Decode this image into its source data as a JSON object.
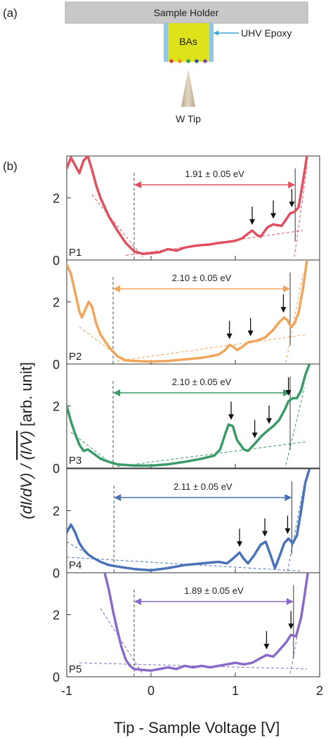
{
  "panel_a": {
    "label": "(a)",
    "sample_holder": "Sample Holder",
    "crystal": "BAs",
    "epoxy": "UHV Epoxy",
    "tip": "W Tip",
    "dot_colors": [
      "#d94545",
      "#f0901a",
      "#3fa05a",
      "#2f55a8",
      "#7b4fa8"
    ]
  },
  "panel_b": {
    "label": "(b)",
    "ylabel_left": "(dI/dV) / ",
    "ylabel_frac": "(I/V)",
    "ylabel_right": " [arb. unit]",
    "xlabel": "Tip - Sample Voltage [V]"
  },
  "chart_data": {
    "type": "line",
    "xlim": [
      -1,
      2
    ],
    "ylim": [
      0,
      3.35
    ],
    "xticks": [
      "-1",
      "0",
      "1",
      "2"
    ],
    "yticks": [
      "0",
      "2"
    ],
    "grid": false,
    "series": [
      {
        "name": "P1",
        "color": "#e05060",
        "gap_text": "1.91 ± 0.05 eV",
        "gap": [
          -0.2,
          1.71
        ],
        "arrows": [
          1.2,
          1.45,
          1.67
        ],
        "points": [
          [
            -1.0,
            2.95
          ],
          [
            -0.95,
            3.3
          ],
          [
            -0.9,
            3.05
          ],
          [
            -0.85,
            2.8
          ],
          [
            -0.8,
            3.2
          ],
          [
            -0.75,
            3.35
          ],
          [
            -0.7,
            2.9
          ],
          [
            -0.65,
            2.4
          ],
          [
            -0.6,
            2.0
          ],
          [
            -0.5,
            1.4
          ],
          [
            -0.4,
            0.95
          ],
          [
            -0.3,
            0.55
          ],
          [
            -0.2,
            0.28
          ],
          [
            -0.1,
            0.2
          ],
          [
            0.0,
            0.22
          ],
          [
            0.1,
            0.25
          ],
          [
            0.2,
            0.35
          ],
          [
            0.3,
            0.3
          ],
          [
            0.4,
            0.4
          ],
          [
            0.5,
            0.45
          ],
          [
            0.6,
            0.48
          ],
          [
            0.7,
            0.5
          ],
          [
            0.8,
            0.55
          ],
          [
            0.9,
            0.58
          ],
          [
            1.0,
            0.62
          ],
          [
            1.08,
            0.7
          ],
          [
            1.15,
            0.85
          ],
          [
            1.2,
            0.95
          ],
          [
            1.25,
            0.82
          ],
          [
            1.3,
            0.75
          ],
          [
            1.38,
            1.05
          ],
          [
            1.45,
            1.15
          ],
          [
            1.5,
            1.12
          ],
          [
            1.55,
            1.1
          ],
          [
            1.6,
            1.3
          ],
          [
            1.65,
            1.5
          ],
          [
            1.7,
            1.55
          ],
          [
            1.75,
            1.7
          ],
          [
            1.8,
            2.5
          ],
          [
            1.85,
            3.35
          ]
        ],
        "fit_low": [
          [
            -0.7,
            2.1
          ],
          [
            -0.1,
            0.1
          ]
        ],
        "fit_base": [
          [
            -0.3,
            0.15
          ],
          [
            1.8,
            0.95
          ]
        ],
        "fit_high": [
          [
            1.7,
            0.1
          ],
          [
            1.85,
            3.0
          ]
        ]
      },
      {
        "name": "P2",
        "color": "#f0a55a",
        "gap_text": "2.10 ± 0.05 eV",
        "gap": [
          -0.45,
          1.65
        ],
        "arrows": [
          0.93,
          1.18,
          1.57
        ],
        "points": [
          [
            -1.0,
            3.2
          ],
          [
            -0.95,
            2.9
          ],
          [
            -0.9,
            2.3
          ],
          [
            -0.85,
            1.7
          ],
          [
            -0.82,
            1.5
          ],
          [
            -0.78,
            1.75
          ],
          [
            -0.74,
            2.0
          ],
          [
            -0.7,
            1.85
          ],
          [
            -0.65,
            1.3
          ],
          [
            -0.6,
            0.95
          ],
          [
            -0.5,
            0.55
          ],
          [
            -0.4,
            0.25
          ],
          [
            -0.3,
            0.12
          ],
          [
            -0.2,
            0.1
          ],
          [
            0.0,
            0.08
          ],
          [
            0.2,
            0.1
          ],
          [
            0.4,
            0.15
          ],
          [
            0.6,
            0.2
          ],
          [
            0.8,
            0.3
          ],
          [
            0.88,
            0.45
          ],
          [
            0.93,
            0.62
          ],
          [
            0.98,
            0.55
          ],
          [
            1.02,
            0.45
          ],
          [
            1.08,
            0.55
          ],
          [
            1.15,
            0.7
          ],
          [
            1.25,
            0.75
          ],
          [
            1.35,
            0.85
          ],
          [
            1.45,
            1.1
          ],
          [
            1.52,
            1.35
          ],
          [
            1.58,
            1.5
          ],
          [
            1.62,
            1.4
          ],
          [
            1.66,
            1.2
          ],
          [
            1.7,
            1.3
          ],
          [
            1.75,
            1.65
          ],
          [
            1.8,
            2.4
          ],
          [
            1.85,
            3.35
          ]
        ],
        "fit_low": [
          [
            -0.85,
            1.2
          ],
          [
            -0.3,
            0.05
          ]
        ],
        "fit_base": [
          [
            -0.4,
            0.1
          ],
          [
            1.85,
            0.95
          ]
        ],
        "fit_high": [
          [
            1.6,
            0.05
          ],
          [
            1.8,
            2.9
          ]
        ]
      },
      {
        "name": "P3",
        "color": "#3a9a68",
        "gap_text": "2.10 ± 0.05 eV",
        "gap": [
          -0.45,
          1.65
        ],
        "arrows": [
          0.95,
          1.23,
          1.4,
          1.63
        ],
        "points": [
          [
            -1.0,
            2.0
          ],
          [
            -0.95,
            1.5
          ],
          [
            -0.9,
            1.1
          ],
          [
            -0.85,
            0.75
          ],
          [
            -0.8,
            0.55
          ],
          [
            -0.75,
            0.6
          ],
          [
            -0.7,
            0.5
          ],
          [
            -0.6,
            0.3
          ],
          [
            -0.5,
            0.2
          ],
          [
            -0.4,
            0.12
          ],
          [
            -0.2,
            0.08
          ],
          [
            0.0,
            0.08
          ],
          [
            0.2,
            0.12
          ],
          [
            0.4,
            0.2
          ],
          [
            0.6,
            0.3
          ],
          [
            0.75,
            0.4
          ],
          [
            0.82,
            0.6
          ],
          [
            0.88,
            1.1
          ],
          [
            0.92,
            1.4
          ],
          [
            0.97,
            1.35
          ],
          [
            1.02,
            0.9
          ],
          [
            1.1,
            0.6
          ],
          [
            1.15,
            0.55
          ],
          [
            1.22,
            0.75
          ],
          [
            1.3,
            1.0
          ],
          [
            1.38,
            1.2
          ],
          [
            1.45,
            1.35
          ],
          [
            1.52,
            1.55
          ],
          [
            1.58,
            1.85
          ],
          [
            1.63,
            2.15
          ],
          [
            1.68,
            2.25
          ],
          [
            1.73,
            2.25
          ],
          [
            1.78,
            2.5
          ],
          [
            1.83,
            3.0
          ],
          [
            1.88,
            3.35
          ]
        ],
        "fit_low": [
          [
            -0.95,
            1.15
          ],
          [
            -0.45,
            0.1
          ]
        ],
        "fit_base": [
          [
            -0.4,
            0.05
          ],
          [
            1.85,
            0.85
          ]
        ],
        "fit_high": [
          [
            1.6,
            0.1
          ],
          [
            1.82,
            2.6
          ]
        ]
      },
      {
        "name": "P4",
        "color": "#4a72b8",
        "gap_text": "2.11 ± 0.05 eV",
        "gap": [
          -0.44,
          1.67
        ],
        "arrows": [
          1.05,
          1.35,
          1.62
        ],
        "points": [
          [
            -1.0,
            1.3
          ],
          [
            -0.95,
            1.55
          ],
          [
            -0.9,
            1.3
          ],
          [
            -0.85,
            0.95
          ],
          [
            -0.8,
            0.75
          ],
          [
            -0.75,
            0.6
          ],
          [
            -0.7,
            0.5
          ],
          [
            -0.6,
            0.35
          ],
          [
            -0.5,
            0.25
          ],
          [
            -0.4,
            0.2
          ],
          [
            -0.2,
            0.12
          ],
          [
            0.0,
            0.08
          ],
          [
            0.2,
            0.15
          ],
          [
            0.4,
            0.25
          ],
          [
            0.6,
            0.3
          ],
          [
            0.8,
            0.35
          ],
          [
            0.9,
            0.3
          ],
          [
            0.97,
            0.45
          ],
          [
            1.05,
            0.65
          ],
          [
            1.1,
            0.45
          ],
          [
            1.15,
            0.3
          ],
          [
            1.22,
            0.55
          ],
          [
            1.3,
            0.9
          ],
          [
            1.36,
            1.0
          ],
          [
            1.42,
            0.55
          ],
          [
            1.47,
            0.15
          ],
          [
            1.52,
            0.5
          ],
          [
            1.58,
            0.95
          ],
          [
            1.63,
            1.1
          ],
          [
            1.68,
            0.95
          ],
          [
            1.73,
            1.2
          ],
          [
            1.78,
            2.0
          ],
          [
            1.83,
            2.9
          ],
          [
            1.88,
            3.35
          ]
        ],
        "fit_low": [
          [
            -1.0,
            1.0
          ],
          [
            -0.5,
            0.2
          ]
        ],
        "fit_base": [
          [
            -1.0,
            0.5
          ],
          [
            1.8,
            0.05
          ]
        ],
        "fit_high": [
          [
            1.62,
            0.05
          ],
          [
            1.82,
            2.9
          ]
        ]
      },
      {
        "name": "P5",
        "color": "#8a6ac8",
        "gap_text": "1.89 ± 0.05 eV",
        "gap": [
          -0.2,
          1.69
        ],
        "arrows": [
          1.37,
          1.66
        ],
        "points": [
          [
            -0.55,
            3.35
          ],
          [
            -0.5,
            2.8
          ],
          [
            -0.45,
            2.1
          ],
          [
            -0.4,
            1.5
          ],
          [
            -0.35,
            0.95
          ],
          [
            -0.3,
            0.55
          ],
          [
            -0.25,
            0.35
          ],
          [
            -0.2,
            0.25
          ],
          [
            -0.1,
            0.22
          ],
          [
            0.0,
            0.2
          ],
          [
            0.1,
            0.25
          ],
          [
            0.2,
            0.3
          ],
          [
            0.3,
            0.25
          ],
          [
            0.4,
            0.35
          ],
          [
            0.5,
            0.3
          ],
          [
            0.6,
            0.35
          ],
          [
            0.7,
            0.3
          ],
          [
            0.8,
            0.35
          ],
          [
            0.9,
            0.4
          ],
          [
            1.0,
            0.45
          ],
          [
            1.1,
            0.4
          ],
          [
            1.2,
            0.45
          ],
          [
            1.3,
            0.6
          ],
          [
            1.37,
            0.7
          ],
          [
            1.45,
            0.65
          ],
          [
            1.52,
            0.85
          ],
          [
            1.6,
            1.1
          ],
          [
            1.66,
            1.35
          ],
          [
            1.72,
            1.3
          ],
          [
            1.78,
            1.9
          ],
          [
            1.82,
            2.6
          ],
          [
            1.86,
            3.35
          ]
        ],
        "fit_low": [
          [
            -0.6,
            2.2
          ],
          [
            -0.1,
            0.1
          ]
        ],
        "fit_base": [
          [
            -0.85,
            0.45
          ],
          [
            1.85,
            0.25
          ]
        ],
        "fit_high": [
          [
            1.65,
            0.1
          ],
          [
            1.85,
            3.0
          ]
        ]
      }
    ]
  }
}
